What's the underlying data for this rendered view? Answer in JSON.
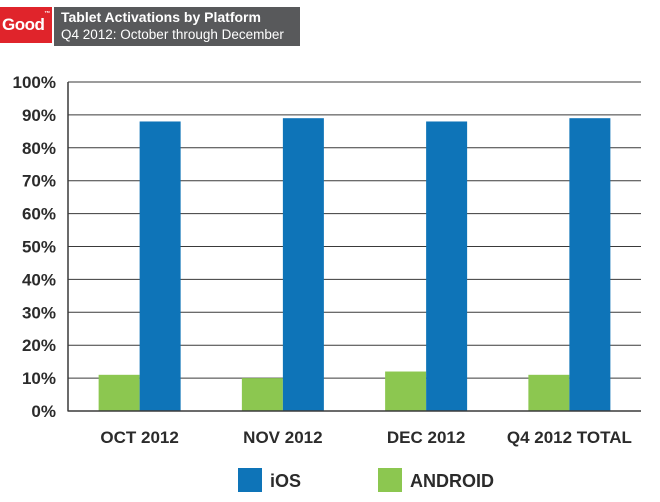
{
  "header": {
    "logo_text": "Good",
    "logo_mark": "™",
    "title": "Tablet Activations by Platform",
    "subtitle": "Q4 2012: October through December"
  },
  "colors": {
    "brand_red": "#e0242b",
    "header_gray": "#58595b",
    "ios_blue": "#0e74b8",
    "android_green": "#8cc750"
  },
  "chart_data": {
    "type": "bar",
    "title": "Tablet Activations by Platform",
    "subtitle": "Q4 2012: October through December",
    "categories": [
      "OCT 2012",
      "NOV 2012",
      "DEC 2012",
      "Q4 2012 TOTAL"
    ],
    "series": [
      {
        "name": "ANDROID",
        "color": "#8cc750",
        "values": [
          11,
          10,
          12,
          11
        ]
      },
      {
        "name": "iOS",
        "color": "#0e74b8",
        "values": [
          88,
          89,
          88,
          89
        ]
      }
    ],
    "ylim": [
      0,
      100
    ],
    "yticks": [
      "0%",
      "10%",
      "20%",
      "30%",
      "40%",
      "50%",
      "60%",
      "70%",
      "80%",
      "90%",
      "100%"
    ],
    "grid": true,
    "legend_position": "bottom",
    "legend": [
      "iOS",
      "ANDROID"
    ]
  }
}
